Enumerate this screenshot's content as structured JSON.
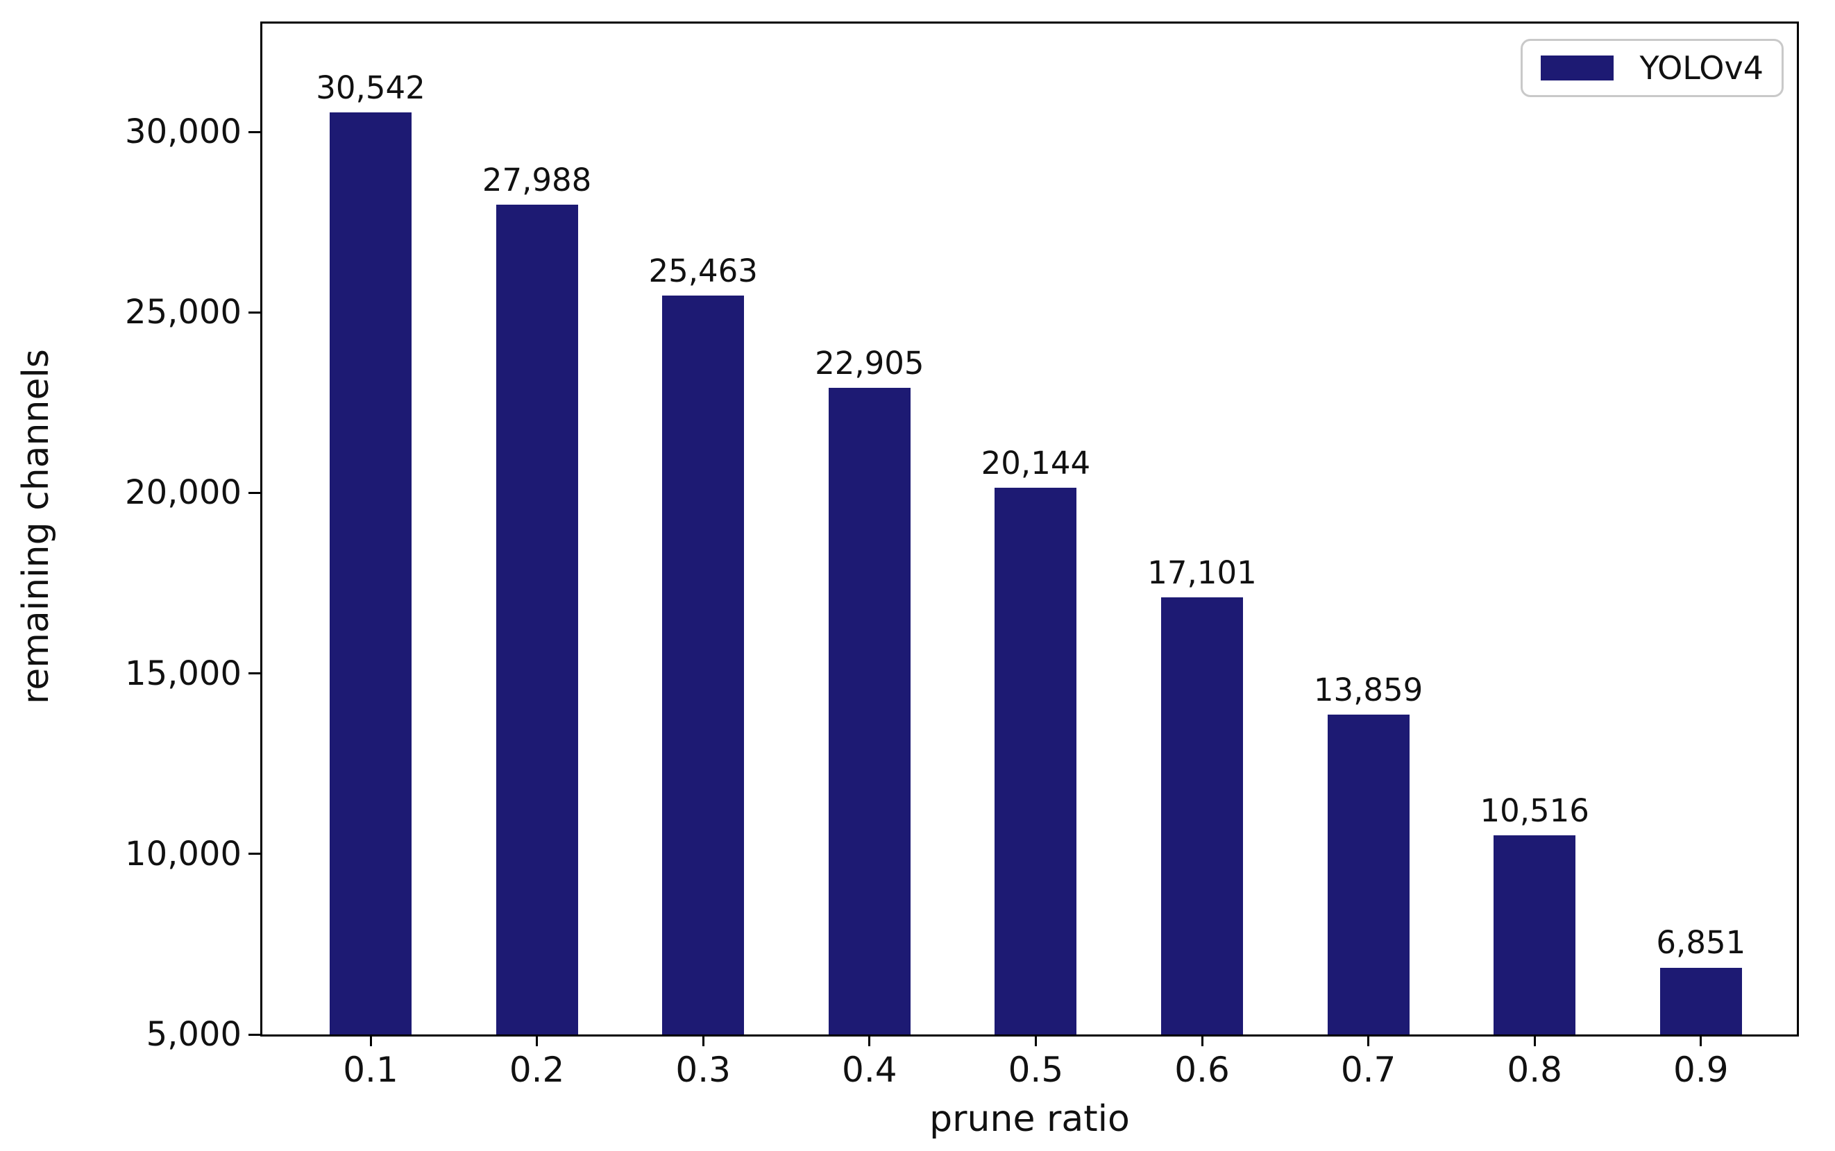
{
  "chart_data": {
    "type": "bar",
    "title": "",
    "xlabel": "prune ratio",
    "ylabel": "remaining channels",
    "categories": [
      "0.1",
      "0.2",
      "0.3",
      "0.4",
      "0.5",
      "0.6",
      "0.7",
      "0.8",
      "0.9"
    ],
    "series": [
      {
        "name": "YOLOv4",
        "values": [
          30542,
          27988,
          25463,
          22905,
          20144,
          17101,
          13859,
          10516,
          6851
        ],
        "labels": [
          "30,542",
          "27,988",
          "25,463",
          "22,905",
          "20,144",
          "17,101",
          "13,859",
          "10,516",
          "6,851"
        ]
      }
    ],
    "ylim": [
      5000,
      33000
    ],
    "y_ticks": [
      {
        "value": 5000,
        "label": "5,000"
      },
      {
        "value": 10000,
        "label": "10,000"
      },
      {
        "value": 15000,
        "label": "15,000"
      },
      {
        "value": 20000,
        "label": "20,000"
      },
      {
        "value": 25000,
        "label": "25,000"
      },
      {
        "value": 30000,
        "label": "30,000"
      }
    ],
    "grid": false,
    "legend": {
      "position": "upper right",
      "entries": [
        "YOLOv4"
      ]
    }
  },
  "colors": {
    "bar": "#1d1a73",
    "axis": "#000000",
    "text": "#111111",
    "legend_border": "#c9c9c9",
    "background": "#ffffff"
  }
}
